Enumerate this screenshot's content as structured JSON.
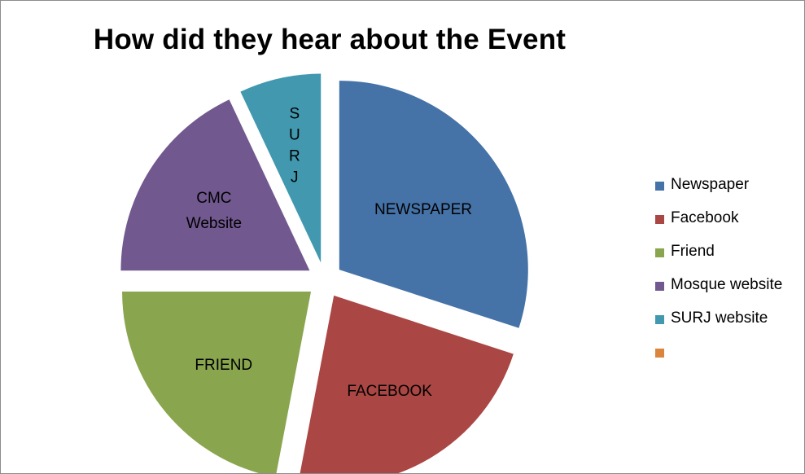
{
  "chart_data": {
    "type": "pie",
    "title": "How did they hear about the Event",
    "categories": [
      "Newspaper",
      "Facebook",
      "Friend",
      "Mosque website",
      "SURJ website",
      ""
    ],
    "values": [
      30,
      23,
      22,
      18,
      7,
      0
    ],
    "colors": [
      "#4572A7",
      "#AA4643",
      "#89A54E",
      "#71588F",
      "#4198AF",
      "#DB843D"
    ],
    "slice_labels": [
      [
        "NEWSPAPER"
      ],
      [
        "FACEBOOK"
      ],
      [
        "FRIEND"
      ],
      [
        "CMC",
        "Website"
      ],
      [
        "S",
        "U",
        "R",
        "J"
      ],
      []
    ],
    "legend_position": "right",
    "exploded": true
  }
}
